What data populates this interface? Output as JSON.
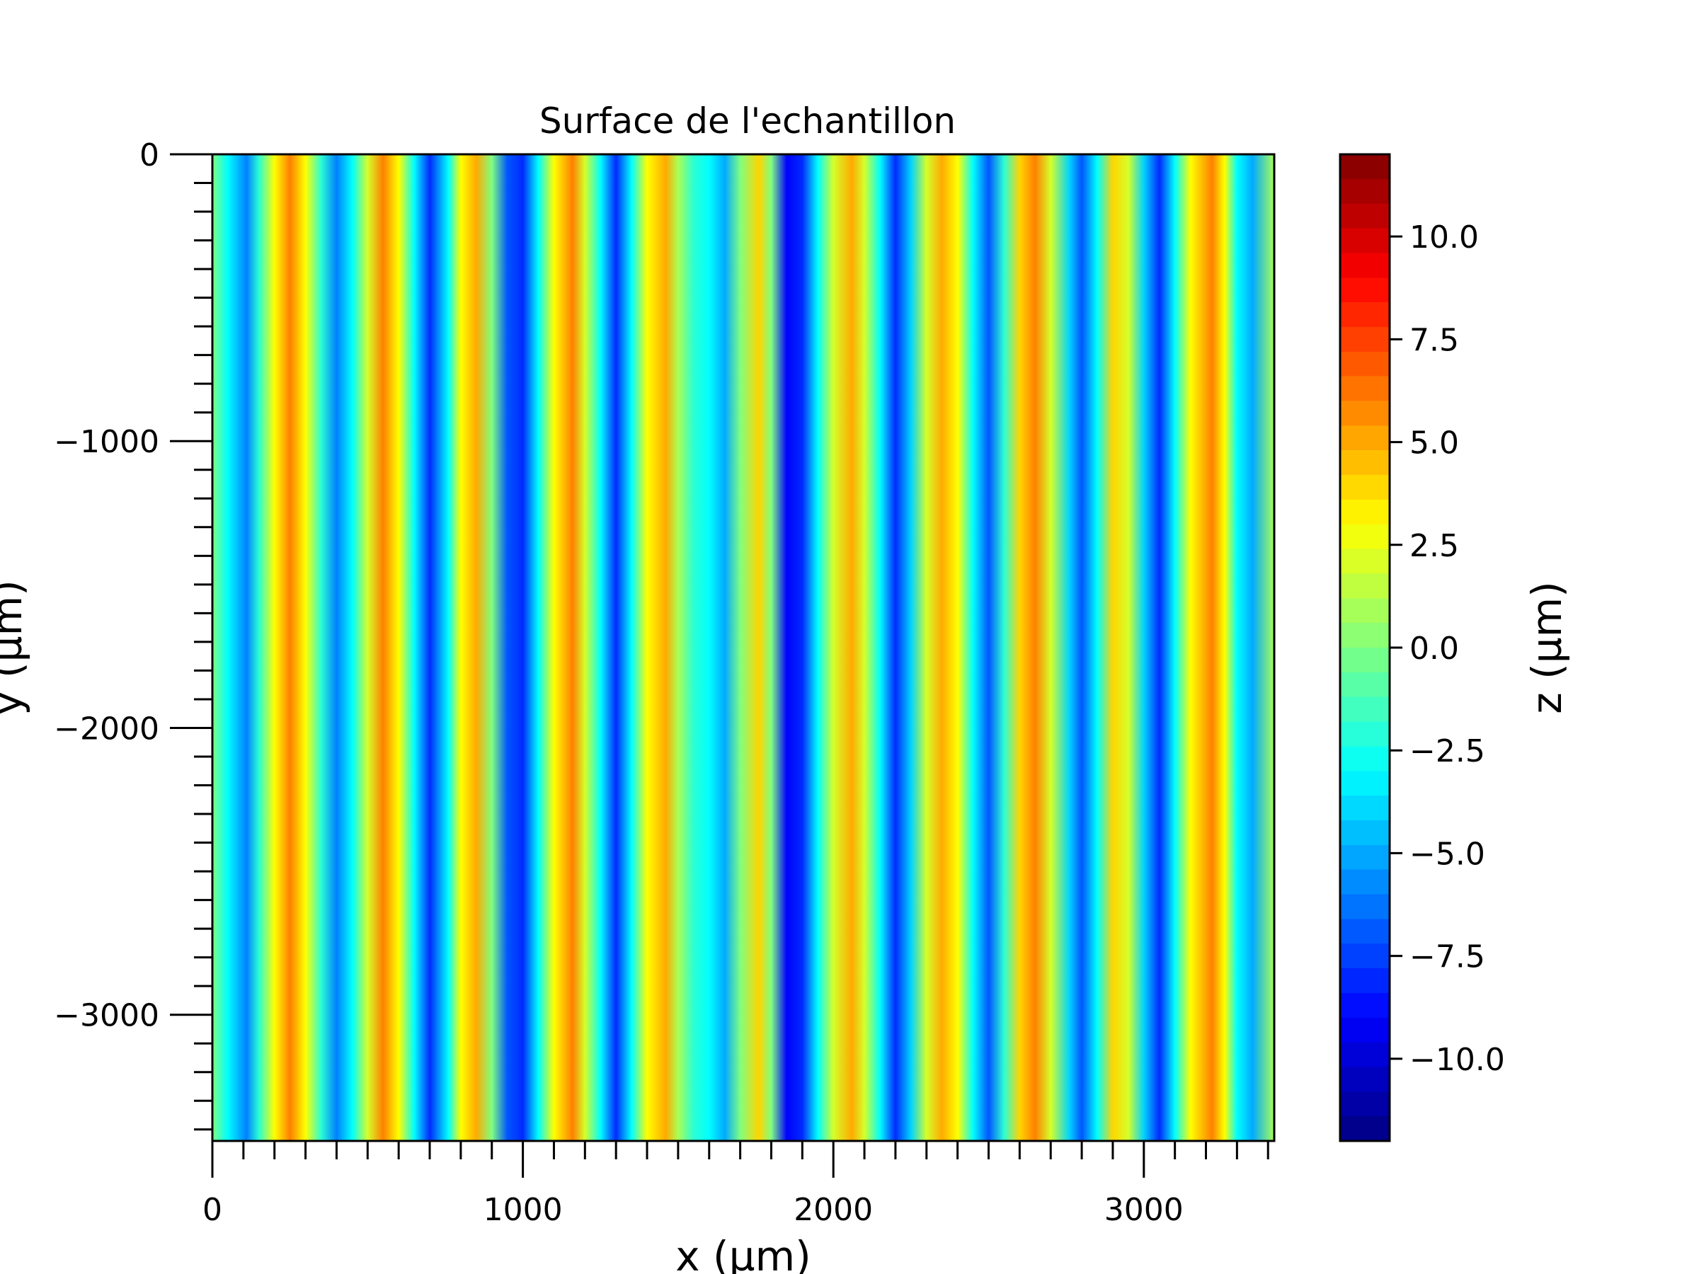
{
  "chart_data": {
    "type": "heatmap",
    "title": "Surface de l'echantillon",
    "xlabel": "x (µm)",
    "ylabel": "y (µm)",
    "colorbar_label": "z (µm)",
    "colormap": "jet",
    "xlim": [
      0,
      3420
    ],
    "ylim": [
      -3440,
      0
    ],
    "zlim": [
      -12,
      12
    ],
    "xticks": [
      0,
      1000,
      2000,
      3000
    ],
    "xtick_labels": [
      "0",
      "1000",
      "2000",
      "3000"
    ],
    "yticks": [
      0,
      -1000,
      -2000,
      -3000
    ],
    "ytick_labels": [
      "0",
      "−1000",
      "−2000",
      "−3000"
    ],
    "colorbar_ticks": [
      10,
      7.5,
      5,
      2.5,
      0,
      -2.5,
      -5,
      -7.5,
      -10
    ],
    "colorbar_tick_labels": [
      "10.0",
      "7.5",
      "5.0",
      "2.5",
      "0.0",
      "−2.5",
      "−5.0",
      "−7.5",
      "−10.0"
    ],
    "grid": false,
    "pattern": "vertical ridges (ripples) across x, roughly constant along y",
    "z_profile_along_x": {
      "x": [
        0,
        50,
        110,
        150,
        200,
        250,
        300,
        350,
        400,
        450,
        500,
        550,
        600,
        650,
        700,
        760,
        800,
        850,
        900,
        950,
        1000,
        1050,
        1100,
        1160,
        1200,
        1250,
        1300,
        1350,
        1400,
        1460,
        1500,
        1550,
        1600,
        1650,
        1700,
        1760,
        1800,
        1850,
        1900,
        1950,
        2000,
        2060,
        2100,
        2150,
        2200,
        2250,
        2300,
        2350,
        2400,
        2450,
        2500,
        2550,
        2600,
        2650,
        2700,
        2760,
        2800,
        2850,
        2900,
        2950,
        3000,
        3050,
        3100,
        3150,
        3220,
        3260,
        3300,
        3350,
        3420
      ],
      "z": [
        0,
        -3,
        -6,
        -2,
        3,
        6,
        3,
        -2,
        -6,
        -3,
        2,
        6,
        3,
        -3,
        -8,
        -3,
        3,
        5,
        0,
        -7,
        -8,
        -3,
        3,
        6,
        2,
        -3,
        -8,
        -3,
        3,
        5,
        1,
        -2,
        -3,
        -5,
        0,
        4,
        0,
        -9,
        -8,
        -3,
        2,
        5,
        2,
        -3,
        -8,
        -4,
        2,
        5,
        3,
        -3,
        -7,
        -2,
        4,
        6,
        2,
        -4,
        -7,
        -3,
        4,
        2,
        -4,
        -8,
        -3,
        3,
        6,
        3,
        -3,
        -5,
        1
      ]
    }
  }
}
